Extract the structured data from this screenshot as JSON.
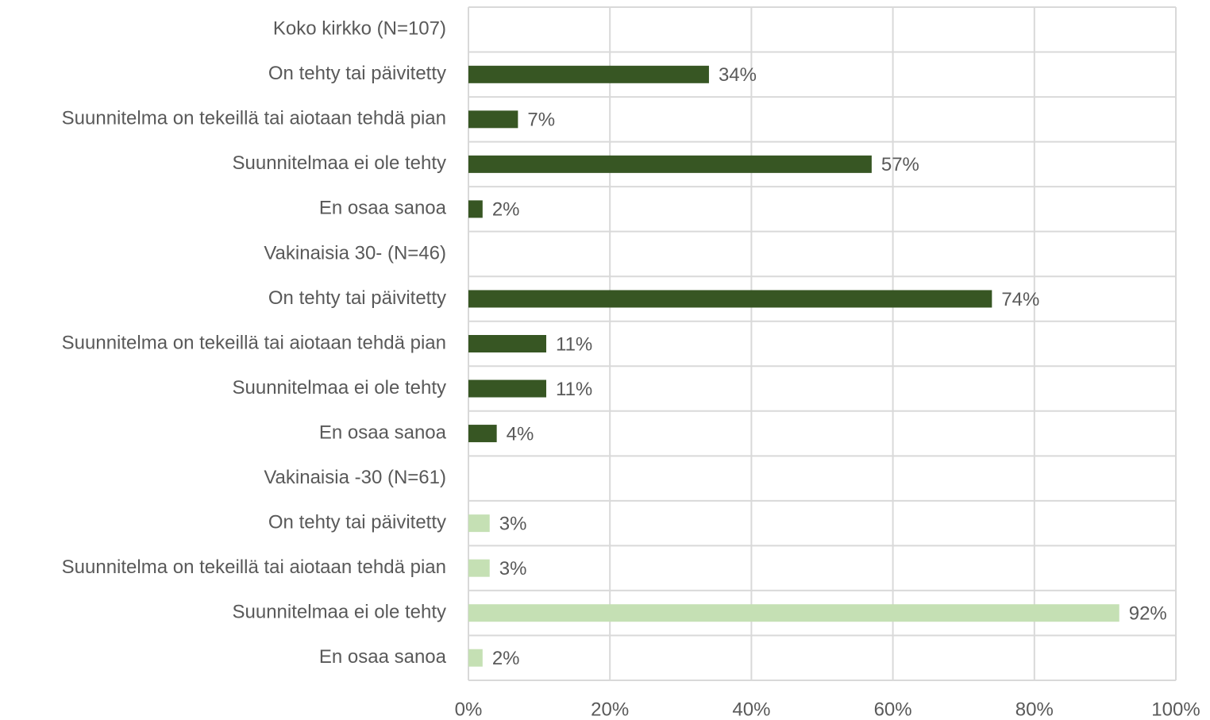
{
  "chart_data": {
    "type": "bar",
    "orientation": "horizontal",
    "categories": [
      "Koko kirkko (N=107)",
      "On tehty tai päivitetty",
      "Suunnitelma on tekeillä tai aiotaan tehdä pian",
      "Suunnitelmaa ei ole tehty",
      "En osaa sanoa",
      "Vakinaisia 30-  (N=46)",
      "On tehty tai päivitetty",
      "Suunnitelma on tekeillä tai aiotaan tehdä pian",
      "Suunnitelmaa ei ole tehty",
      "En osaa sanoa",
      "Vakinaisia -30 (N=61)",
      "On tehty tai päivitetty",
      "Suunnitelma on tekeillä tai aiotaan tehdä pian",
      "Suunnitelmaa ei ole tehty",
      "En osaa sanoa"
    ],
    "values": [
      null,
      34,
      7,
      57,
      2,
      null,
      74,
      11,
      11,
      4,
      null,
      3,
      3,
      92,
      2
    ],
    "value_labels": [
      null,
      "34%",
      "7%",
      "57%",
      "2%",
      null,
      "74%",
      "11%",
      "11%",
      "4%",
      null,
      "3%",
      "3%",
      "92%",
      "2%"
    ],
    "colors": [
      null,
      "#375623",
      "#375623",
      "#375623",
      "#375623",
      null,
      "#375623",
      "#375623",
      "#375623",
      "#375623",
      null,
      "#c5e0b4",
      "#c5e0b4",
      "#c5e0b4",
      "#c5e0b4"
    ],
    "xlim": [
      0,
      100
    ],
    "xticks": [
      {
        "value": 0,
        "label": "0%"
      },
      {
        "value": 20,
        "label": "20%"
      },
      {
        "value": 40,
        "label": "40%"
      },
      {
        "value": 60,
        "label": "60%"
      },
      {
        "value": 80,
        "label": "80%"
      },
      {
        "value": 100,
        "label": "100%"
      }
    ],
    "grid": true
  }
}
